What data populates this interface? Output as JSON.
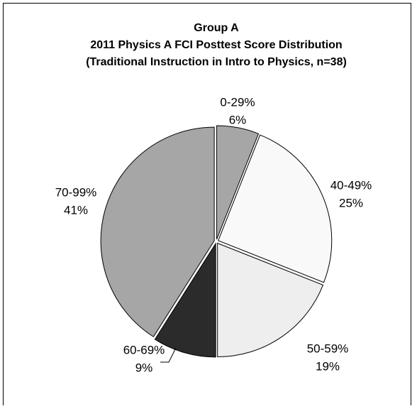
{
  "chart_data": {
    "type": "pie",
    "title": [
      "Group A",
      "2011 Physics A FCI Posttest Score Distribution",
      "(Traditional Instruction in Intro to Physics, n=38)"
    ],
    "categories": [
      "0-29%",
      "40-49%",
      "50-59%",
      "60-69%",
      "70-99%"
    ],
    "values": [
      6,
      25,
      19,
      9,
      41
    ],
    "value_labels": [
      "6%",
      "25%",
      "19%",
      "9%",
      "41%"
    ],
    "colors": [
      "#a6a6a6",
      "#f9f9f9",
      "#eeeeee",
      "#2b2b2b",
      "#a6a6a6"
    ]
  }
}
